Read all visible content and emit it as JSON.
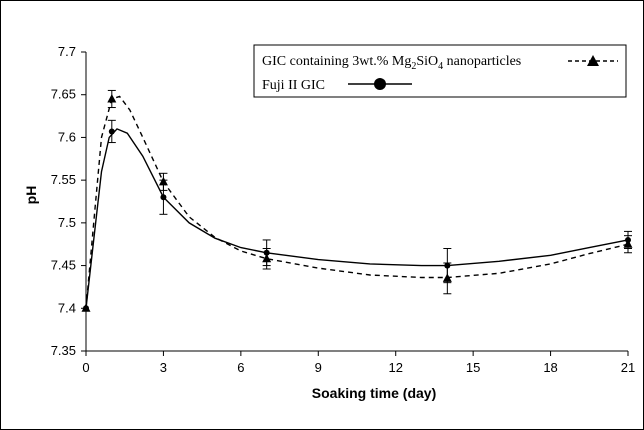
{
  "chart_data": {
    "type": "line",
    "xlabel": "Soaking time (day)",
    "ylabel": "pH",
    "xlim": [
      0,
      21
    ],
    "ylim": [
      7.35,
      7.7
    ],
    "xticks": [
      0,
      3,
      6,
      9,
      12,
      15,
      18,
      21
    ],
    "yticks": [
      7.35,
      7.4,
      7.45,
      7.5,
      7.55,
      7.6,
      7.65,
      7.7
    ],
    "ytick_labels": [
      "7.35",
      "7.4",
      "7.45",
      "7.5",
      "7.55",
      "7.6",
      "7.65",
      "7.7"
    ],
    "grid": false,
    "legend_position": "top-right",
    "series": [
      {
        "name": "GIC containing 3wt.% Mg2SiO4 nanoparticles",
        "legend_parts": [
          "GIC containing 3wt.% Mg",
          "2",
          "SiO",
          "4",
          " nanoparticles"
        ],
        "marker": "triangle",
        "line_style": "dashed",
        "x": [
          0,
          1,
          3,
          7,
          14,
          21
        ],
        "y": [
          7.4,
          7.645,
          7.548,
          7.458,
          7.435,
          7.475
        ],
        "error": [
          0,
          0.01,
          0.01,
          0.012,
          0.018,
          0.01
        ],
        "curve": [
          [
            0,
            7.4
          ],
          [
            0.3,
            7.5
          ],
          [
            0.6,
            7.6
          ],
          [
            1.0,
            7.645
          ],
          [
            1.3,
            7.648
          ],
          [
            1.7,
            7.632
          ],
          [
            2.2,
            7.6
          ],
          [
            3.0,
            7.548
          ],
          [
            4.0,
            7.507
          ],
          [
            5.0,
            7.483
          ],
          [
            6.0,
            7.467
          ],
          [
            7.0,
            7.458
          ],
          [
            9.0,
            7.447
          ],
          [
            11.0,
            7.439
          ],
          [
            13.0,
            7.436
          ],
          [
            14.0,
            7.436
          ],
          [
            16.0,
            7.441
          ],
          [
            18.0,
            7.452
          ],
          [
            19.5,
            7.464
          ],
          [
            21.0,
            7.475
          ]
        ]
      },
      {
        "name": "Fuji II GIC",
        "marker": "circle",
        "line_style": "solid",
        "x": [
          0,
          1,
          3,
          7,
          14,
          21
        ],
        "y": [
          7.4,
          7.607,
          7.53,
          7.465,
          7.45,
          7.48
        ],
        "error": [
          0,
          0.013,
          0.02,
          0.015,
          0.02,
          0.01
        ],
        "curve": [
          [
            0,
            7.4
          ],
          [
            0.3,
            7.48
          ],
          [
            0.6,
            7.56
          ],
          [
            0.9,
            7.6
          ],
          [
            1.2,
            7.61
          ],
          [
            1.6,
            7.605
          ],
          [
            2.2,
            7.578
          ],
          [
            3.0,
            7.53
          ],
          [
            4.0,
            7.5
          ],
          [
            5.0,
            7.482
          ],
          [
            6.0,
            7.471
          ],
          [
            7.0,
            7.465
          ],
          [
            9.0,
            7.457
          ],
          [
            11.0,
            7.452
          ],
          [
            13.0,
            7.45
          ],
          [
            14.0,
            7.45
          ],
          [
            16.0,
            7.455
          ],
          [
            18.0,
            7.462
          ],
          [
            19.5,
            7.471
          ],
          [
            21.0,
            7.48
          ]
        ]
      }
    ]
  }
}
